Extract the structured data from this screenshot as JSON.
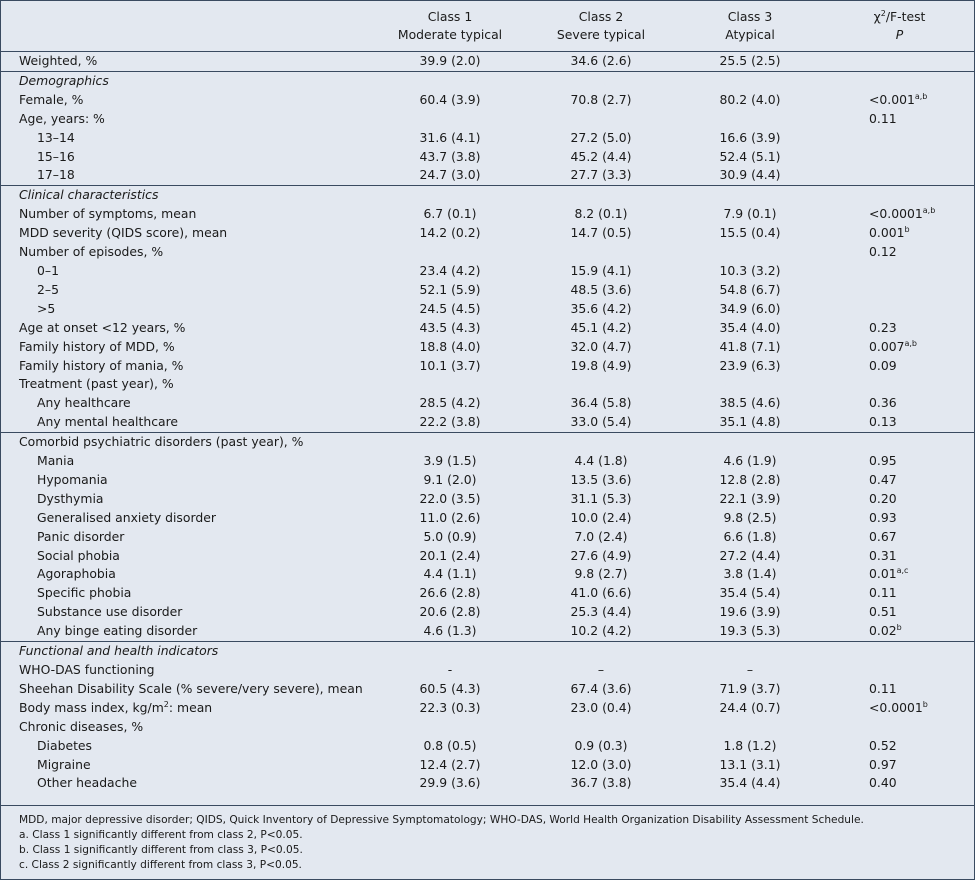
{
  "table": {
    "header": {
      "classes": [
        {
          "line1": "Class 1",
          "line2": "Moderate typical"
        },
        {
          "line1": "Class 2",
          "line2": "Severe typical"
        },
        {
          "line1": "Class 3",
          "line2": "Atypical"
        }
      ],
      "test": {
        "symbol": "χ",
        "sup": "2",
        "rest": "/F-test",
        "line2": "P"
      }
    },
    "sections": [
      {
        "rows": [
          {
            "label": "Weighted, %",
            "values": [
              "39.9 (2.0)",
              "34.6 (2.6)",
              "25.5 (2.5)"
            ]
          }
        ]
      },
      {
        "heading": "Demographics",
        "rows": [
          {
            "label": "Female, %",
            "values": [
              "60.4 (3.9)",
              "70.8 (2.7)",
              "80.2 (4.0)"
            ],
            "p": "<0.001",
            "p_sup": "a,b"
          },
          {
            "label": "Age, years: %",
            "p": "0.11",
            "children": [
              {
                "label": "13–14",
                "values": [
                  "31.6 (4.1)",
                  "27.2 (5.0)",
                  "16.6 (3.9)"
                ]
              },
              {
                "label": "15–16",
                "values": [
                  "43.7 (3.8)",
                  "45.2 (4.4)",
                  "52.4 (5.1)"
                ]
              },
              {
                "label": "17–18",
                "values": [
                  "24.7 (3.0)",
                  "27.7 (3.3)",
                  "30.9 (4.4)"
                ]
              }
            ]
          }
        ]
      },
      {
        "heading": "Clinical characteristics",
        "rows": [
          {
            "label": "Number of symptoms, mean",
            "values": [
              "6.7 (0.1)",
              "8.2 (0.1)",
              "7.9 (0.1)"
            ],
            "p": "<0.0001",
            "p_sup": "a,b"
          },
          {
            "label": "MDD severity (QIDS score), mean",
            "values": [
              "14.2 (0.2)",
              "14.7 (0.5)",
              "15.5 (0.4)"
            ],
            "p": "0.001",
            "p_sup": "b"
          },
          {
            "label": "Number of episodes, %",
            "p": "0.12",
            "children": [
              {
                "label": "0–1",
                "values": [
                  "23.4 (4.2)",
                  "15.9 (4.1)",
                  "10.3 (3.2)"
                ]
              },
              {
                "label": "2–5",
                "values": [
                  "52.1 (5.9)",
                  "48.5 (3.6)",
                  "54.8 (6.7)"
                ]
              },
              {
                "label": ">5",
                "values": [
                  "24.5 (4.5)",
                  "35.6 (4.2)",
                  "34.9 (6.0)"
                ]
              }
            ]
          },
          {
            "label": "Age at onset <12 years, %",
            "values": [
              "43.5 (4.3)",
              "45.1 (4.2)",
              "35.4 (4.0)"
            ],
            "p": "0.23"
          },
          {
            "label": "Family history of MDD, %",
            "values": [
              "18.8 (4.0)",
              "32.0 (4.7)",
              "41.8 (7.1)"
            ],
            "p": "0.007",
            "p_sup": "a,b"
          },
          {
            "label": "Family history of mania, %",
            "values": [
              "10.1 (3.7)",
              "19.8 (4.9)",
              "23.9 (6.3)"
            ],
            "p": "0.09"
          },
          {
            "label": "Treatment (past year), %",
            "children": [
              {
                "label": "Any healthcare",
                "values": [
                  "28.5 (4.2)",
                  "36.4 (5.8)",
                  "38.5 (4.6)"
                ],
                "p": "0.36"
              },
              {
                "label": "Any mental healthcare",
                "values": [
                  "22.2 (3.8)",
                  "33.0 (5.4)",
                  "35.1 (4.8)"
                ],
                "p": "0.13"
              }
            ]
          }
        ]
      },
      {
        "rows": [
          {
            "label": "Comorbid psychiatric disorders (past year), %",
            "children": [
              {
                "label": "Mania",
                "values": [
                  "3.9 (1.5)",
                  "4.4 (1.8)",
                  "4.6 (1.9)"
                ],
                "p": "0.95"
              },
              {
                "label": "Hypomania",
                "values": [
                  "9.1 (2.0)",
                  "13.5 (3.6)",
                  "12.8 (2.8)"
                ],
                "p": "0.47"
              },
              {
                "label": "Dysthymia",
                "values": [
                  "22.0 (3.5)",
                  "31.1 (5.3)",
                  "22.1 (3.9)"
                ],
                "p": "0.20"
              },
              {
                "label": "Generalised anxiety disorder",
                "values": [
                  "11.0 (2.6)",
                  "10.0 (2.4)",
                  "9.8 (2.5)"
                ],
                "p": "0.93"
              },
              {
                "label": "Panic disorder",
                "values": [
                  "5.0 (0.9)",
                  "7.0 (2.4)",
                  "6.6 (1.8)"
                ],
                "p": "0.67"
              },
              {
                "label": "Social phobia",
                "values": [
                  "20.1 (2.4)",
                  "27.6 (4.9)",
                  "27.2 (4.4)"
                ],
                "p": "0.31"
              },
              {
                "label": "Agoraphobia",
                "values": [
                  "4.4 (1.1)",
                  "9.8 (2.7)",
                  "3.8 (1.4)"
                ],
                "p": "0.01",
                "p_sup": "a,c"
              },
              {
                "label": "Specific phobia",
                "values": [
                  "26.6 (2.8)",
                  "41.0 (6.6)",
                  "35.4 (5.4)"
                ],
                "p": "0.11"
              },
              {
                "label": "Substance use disorder",
                "values": [
                  "20.6 (2.8)",
                  "25.3 (4.4)",
                  "19.6 (3.9)"
                ],
                "p": "0.51"
              },
              {
                "label": "Any binge eating disorder",
                "values": [
                  "4.6 (1.3)",
                  "10.2 (4.2)",
                  "19.3 (5.3)"
                ],
                "p": "0.02",
                "p_sup": "b"
              }
            ]
          }
        ]
      },
      {
        "heading": "Functional and health indicators",
        "rows": [
          {
            "label": "WHO-DAS functioning",
            "values": [
              "-",
              "–",
              "–"
            ]
          },
          {
            "label": "Sheehan Disability Scale (% severe/very severe), mean",
            "values": [
              "60.5 (4.3)",
              "67.4 (3.6)",
              "71.9 (3.7)"
            ],
            "p": "0.11"
          },
          {
            "label": "Body mass index, kg/m",
            "label_sup": "2",
            "label_rest": ": mean",
            "values": [
              "22.3 (0.3)",
              "23.0 (0.4)",
              "24.4 (0.7)"
            ],
            "p": "<0.0001",
            "p_sup": "b"
          },
          {
            "label": "Chronic diseases, %",
            "children": [
              {
                "label": "Diabetes",
                "values": [
                  "0.8 (0.5)",
                  "0.9 (0.3)",
                  "1.8 (1.2)"
                ],
                "p": "0.52"
              },
              {
                "label": "Migraine",
                "values": [
                  "12.4 (2.7)",
                  "12.0 (3.0)",
                  "13.1 (3.1)"
                ],
                "p": "0.97"
              },
              {
                "label": "Other headache",
                "values": [
                  "29.9 (3.6)",
                  "36.7 (3.8)",
                  "35.4 (4.4)"
                ],
                "p": "0.40"
              }
            ]
          }
        ]
      }
    ],
    "footnotes": [
      "MDD, major depressive disorder; QIDS, Quick Inventory of Depressive Symptomatology; WHO-DAS, World Health Organization Disability Assessment Schedule.",
      "a. Class 1 significantly different from class 2, P<0.05.",
      "b. Class 1 significantly different from class 3, P<0.05.",
      "c. Class 2 significantly different from class 3, P<0.05."
    ]
  }
}
